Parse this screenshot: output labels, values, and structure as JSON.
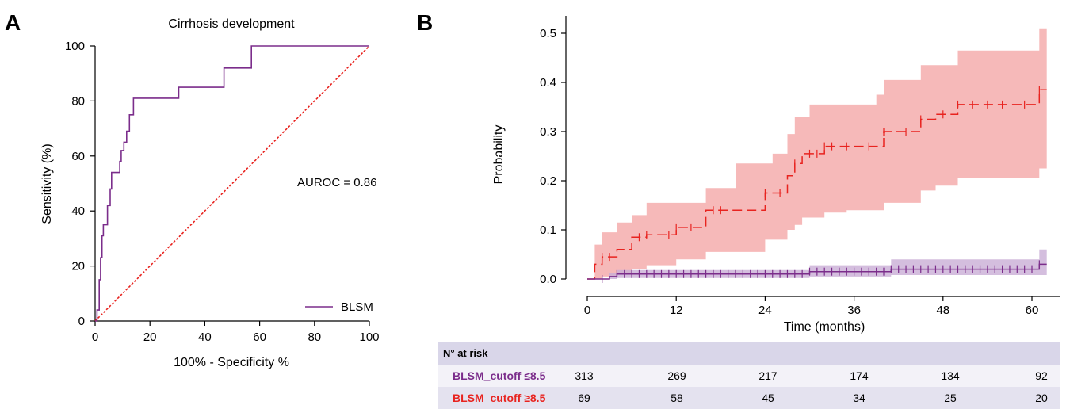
{
  "panels": {
    "a": "A",
    "b": "B"
  },
  "chart_data": [
    {
      "type": "line",
      "title": "Cirrhosis development",
      "xlabel": "100% - Specificity %",
      "ylabel": "Sensitivity (%)",
      "xlim": [
        0,
        100
      ],
      "ylim": [
        0,
        100
      ],
      "xticks": [
        0,
        20,
        40,
        60,
        80,
        100
      ],
      "yticks": [
        0,
        20,
        40,
        60,
        80,
        100
      ],
      "annotation": "AUROC = 0.86",
      "legend": {
        "position": "bottom-right",
        "entries": [
          "BLSM"
        ]
      },
      "colors": {
        "roc": "#7b2d8b",
        "reference": "#e8231f"
      },
      "series": [
        {
          "name": "BLSM",
          "x": [
            0,
            0.7,
            0.7,
            1.5,
            1.5,
            2,
            2,
            2.5,
            2.5,
            3,
            3,
            4.5,
            4.5,
            5.5,
            5.5,
            6,
            6,
            7,
            7,
            9,
            9,
            9.5,
            9.5,
            10.5,
            10.5,
            11.5,
            11.5,
            12.5,
            12.5,
            14,
            14,
            30.5,
            30.5,
            47,
            47,
            51.5,
            51.5,
            57,
            57,
            100
          ],
          "y": [
            0,
            0,
            4,
            4,
            15,
            15,
            23,
            23,
            31,
            31,
            35,
            35,
            42,
            42,
            48,
            48,
            54,
            54,
            54,
            54,
            58,
            58,
            62,
            62,
            65,
            65,
            69,
            69,
            75,
            75,
            81,
            81,
            85,
            85,
            92,
            92,
            92,
            92,
            100,
            100
          ]
        },
        {
          "name": "reference",
          "x": [
            0,
            100
          ],
          "y": [
            0,
            100
          ]
        }
      ]
    },
    {
      "type": "line",
      "xlabel": "Time (months)",
      "ylabel": "Probability",
      "xlim": [
        0,
        62
      ],
      "ylim": [
        0,
        0.5
      ],
      "xticks": [
        0,
        12,
        24,
        36,
        48,
        60
      ],
      "yticks": [
        0.0,
        0.1,
        0.2,
        0.3,
        0.4,
        0.5
      ],
      "ytick_labels": [
        "0.0",
        "0.1",
        "0.2",
        "0.3",
        "0.4",
        "0.5"
      ],
      "colors": {
        "high": "#e8231f",
        "high_band": "#f4a7a7",
        "low": "#7b2d8b",
        "low_band": "#c9aed6"
      },
      "series": [
        {
          "name": "BLSM_cutoff ≥8.5",
          "step_x": [
            0,
            1,
            2,
            4,
            6,
            8,
            12,
            16,
            20,
            24,
            25,
            27,
            28,
            29,
            30,
            32,
            35,
            39,
            40,
            45,
            47,
            50,
            60,
            61,
            62
          ],
          "step_y": [
            0,
            0.03,
            0.045,
            0.06,
            0.085,
            0.09,
            0.105,
            0.14,
            0.14,
            0.175,
            0.175,
            0.21,
            0.235,
            0.255,
            0.255,
            0.27,
            0.27,
            0.27,
            0.3,
            0.325,
            0.335,
            0.355,
            0.355,
            0.385,
            0.385
          ],
          "ci_low": [
            0,
            0,
            0.005,
            0.012,
            0.02,
            0.028,
            0.04,
            0.055,
            0.055,
            0.08,
            0.08,
            0.1,
            0.11,
            0.125,
            0.125,
            0.135,
            0.14,
            0.14,
            0.155,
            0.18,
            0.19,
            0.205,
            0.205,
            0.225,
            0.225
          ],
          "ci_high": [
            0,
            0.07,
            0.095,
            0.115,
            0.13,
            0.155,
            0.155,
            0.185,
            0.235,
            0.235,
            0.255,
            0.295,
            0.33,
            0.33,
            0.355,
            0.355,
            0.355,
            0.375,
            0.405,
            0.435,
            0.435,
            0.465,
            0.465,
            0.51,
            0.51
          ],
          "censor_x": [
            2,
            3,
            7,
            8,
            11,
            12,
            14,
            17,
            18,
            24,
            26,
            28,
            30,
            31,
            32,
            33,
            35,
            38,
            40,
            43,
            45,
            48,
            50,
            52,
            54,
            56,
            59,
            61
          ]
        },
        {
          "name": "BLSM_cutoff ≤8.5",
          "step_x": [
            0,
            2,
            3,
            4,
            30,
            41,
            61,
            62
          ],
          "step_y": [
            0,
            0,
            0.005,
            0.01,
            0.015,
            0.02,
            0.03,
            0.03
          ],
          "ci_low": [
            0,
            0,
            0,
            0.002,
            0.005,
            0.008,
            0.008,
            0.008
          ],
          "ci_high": [
            0,
            0,
            0.012,
            0.018,
            0.028,
            0.04,
            0.06,
            0.06
          ],
          "censor_x": [
            2,
            4,
            5,
            6,
            7,
            8,
            9,
            10,
            11,
            12,
            13,
            14,
            15,
            16,
            17,
            18,
            19,
            20,
            21,
            22,
            23,
            24,
            25,
            26,
            27,
            28,
            29,
            30,
            31,
            32,
            33,
            34,
            35,
            36,
            37,
            38,
            39,
            40,
            41,
            42,
            43,
            44,
            45,
            46,
            47,
            48,
            49,
            50,
            51,
            52,
            53,
            54,
            55,
            56,
            57,
            58,
            59,
            60,
            61
          ]
        }
      ]
    }
  ],
  "risk_table": {
    "header": "N° at risk",
    "rows": [
      {
        "label": "BLSM_cutoff ≤8.5",
        "color": "#7b2d8b",
        "values": [
          "313",
          "269",
          "217",
          "174",
          "134",
          "92"
        ]
      },
      {
        "label": "BLSM_cutoff ≥8.5",
        "color": "#e8231f",
        "values": [
          "69",
          "58",
          "45",
          "34",
          "25",
          "20"
        ]
      }
    ]
  }
}
